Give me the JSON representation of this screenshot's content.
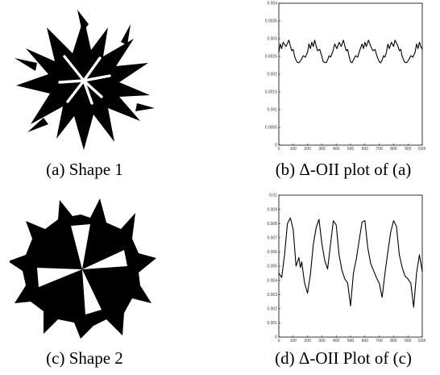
{
  "captions": {
    "a": "(a) Shape 1",
    "b": "(b) Δ-OII plot of (a)",
    "c": "(c) Shape 2",
    "d": "(d) Δ-OII Plot of (c)"
  },
  "chart_data": [
    {
      "type": "line",
      "panel": "b",
      "xlim": [
        0,
        1000
      ],
      "ylim": [
        0,
        0.004
      ],
      "xticks": [
        "0",
        "100",
        "200",
        "300",
        "400",
        "500",
        "600",
        "700",
        "800",
        "900",
        "1000"
      ],
      "yticks": [
        "0.004",
        "0.0035",
        "0.003",
        "0.0025",
        "0.002",
        "0.0015",
        "0.001",
        "0.0005",
        "0"
      ],
      "series": [
        {
          "x": [
            0,
            10,
            20,
            30,
            50,
            70,
            80,
            90,
            100,
            110,
            125,
            140,
            155,
            170,
            185,
            200,
            210,
            220,
            230,
            240,
            250,
            260,
            270,
            285,
            300,
            310,
            330,
            340,
            350,
            360,
            375,
            390,
            405,
            420,
            435,
            450,
            460,
            470,
            480,
            490,
            500,
            510,
            520,
            535,
            550,
            560,
            580,
            590,
            600,
            610,
            625,
            640,
            655,
            670,
            685,
            700,
            710,
            720,
            730,
            740,
            750,
            760,
            770,
            785,
            800,
            810,
            830,
            840,
            850,
            860,
            875,
            890,
            905,
            920,
            935,
            950,
            960,
            970,
            980,
            990,
            1000
          ],
          "y": [
            0.00262,
            0.00285,
            0.00272,
            0.0029,
            0.00278,
            0.00296,
            0.0028,
            0.00266,
            0.0027,
            0.0025,
            0.00235,
            0.00232,
            0.0024,
            0.00252,
            0.00248,
            0.00262,
            0.00285,
            0.00272,
            0.0029,
            0.00278,
            0.00296,
            0.0028,
            0.00266,
            0.0027,
            0.0025,
            0.00235,
            0.00232,
            0.0024,
            0.00252,
            0.00248,
            0.00262,
            0.00285,
            0.00272,
            0.0029,
            0.00278,
            0.00296,
            0.0028,
            0.00266,
            0.0027,
            0.0025,
            0.00235,
            0.00232,
            0.0024,
            0.00252,
            0.00248,
            0.00262,
            0.00285,
            0.00272,
            0.0029,
            0.00278,
            0.00296,
            0.0028,
            0.00266,
            0.0027,
            0.0025,
            0.00235,
            0.00232,
            0.0024,
            0.00252,
            0.00248,
            0.00262,
            0.00285,
            0.00272,
            0.0029,
            0.00278,
            0.00296,
            0.0028,
            0.00266,
            0.0027,
            0.0025,
            0.00235,
            0.00232,
            0.0024,
            0.00252,
            0.00248,
            0.00262,
            0.00285,
            0.00272,
            0.0029,
            0.00278,
            0.0027
          ]
        }
      ]
    },
    {
      "type": "line",
      "panel": "d",
      "xlim": [
        0,
        1000
      ],
      "ylim": [
        0,
        0.01
      ],
      "xticks": [
        "0",
        "100",
        "200",
        "300",
        "400",
        "500",
        "600",
        "700",
        "800",
        "900",
        "1000"
      ],
      "yticks": [
        "0.01",
        "0.009",
        "0.008",
        "0.007",
        "0.006",
        "0.005",
        "0.004",
        "0.003",
        "0.002",
        "0.001",
        "0"
      ],
      "series": [
        {
          "x": [
            0,
            20,
            40,
            60,
            80,
            100,
            120,
            140,
            150,
            160,
            170,
            180,
            200,
            220,
            240,
            260,
            280,
            300,
            320,
            340,
            360,
            380,
            400,
            420,
            440,
            460,
            480,
            500,
            520,
            540,
            560,
            580,
            600,
            620,
            640,
            660,
            680,
            700,
            720,
            740,
            760,
            780,
            800,
            820,
            840,
            860,
            880,
            900,
            920,
            940,
            960,
            980,
            1000
          ],
          "y": [
            0.0045,
            0.0042,
            0.0058,
            0.008,
            0.0084,
            0.0076,
            0.005,
            0.0056,
            0.0049,
            0.0053,
            0.0045,
            0.0038,
            0.0031,
            0.0044,
            0.0065,
            0.0077,
            0.0083,
            0.0066,
            0.0054,
            0.0048,
            0.0065,
            0.0082,
            0.0079,
            0.0058,
            0.0047,
            0.0041,
            0.0038,
            0.0022,
            0.0045,
            0.0055,
            0.0068,
            0.0081,
            0.0082,
            0.0063,
            0.0052,
            0.0047,
            0.0042,
            0.0038,
            0.0028,
            0.0045,
            0.006,
            0.0074,
            0.0082,
            0.0078,
            0.0058,
            0.0049,
            0.0043,
            0.0041,
            0.0038,
            0.0021,
            0.0045,
            0.0058,
            0.0046
          ]
        }
      ]
    }
  ]
}
